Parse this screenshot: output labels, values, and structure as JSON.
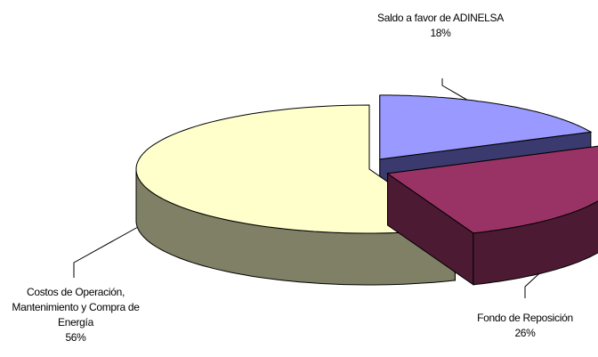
{
  "chart_data": {
    "type": "pie3d",
    "categories": [
      "Saldo a favor de ADINELSA",
      "Fondo de Reposición",
      "Costos de Operación, Mantenimiento y Compra de Energía"
    ],
    "values": [
      18,
      26,
      56
    ],
    "value_labels": [
      "18%",
      "26%",
      "56%"
    ],
    "colors": [
      "#9999ff",
      "#993366",
      "#ffffcc"
    ],
    "side_colors": [
      "#3a3a6e",
      "#4d1a33",
      "#808066"
    ]
  }
}
